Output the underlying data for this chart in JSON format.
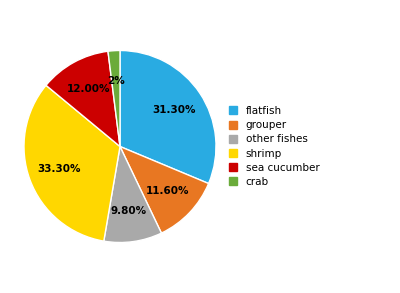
{
  "labels": [
    "flatfish",
    "grouper",
    "other fishes",
    "shrimp",
    "sea cucumber",
    "crab"
  ],
  "values": [
    31.3,
    11.6,
    9.8,
    33.3,
    12.0,
    2.0
  ],
  "colors": [
    "#29ABE2",
    "#E87722",
    "#A9A9A9",
    "#FFD700",
    "#CC0000",
    "#6AAB3A"
  ],
  "pct_labels": [
    "31.30%",
    "11.60%",
    "9.80%",
    "33.30%",
    "12.00%",
    "2%"
  ],
  "startangle": 90,
  "legend_labels": [
    "flatfish",
    "grouper",
    "other fishes",
    "shrimp",
    "sea cucumber",
    "crab"
  ]
}
